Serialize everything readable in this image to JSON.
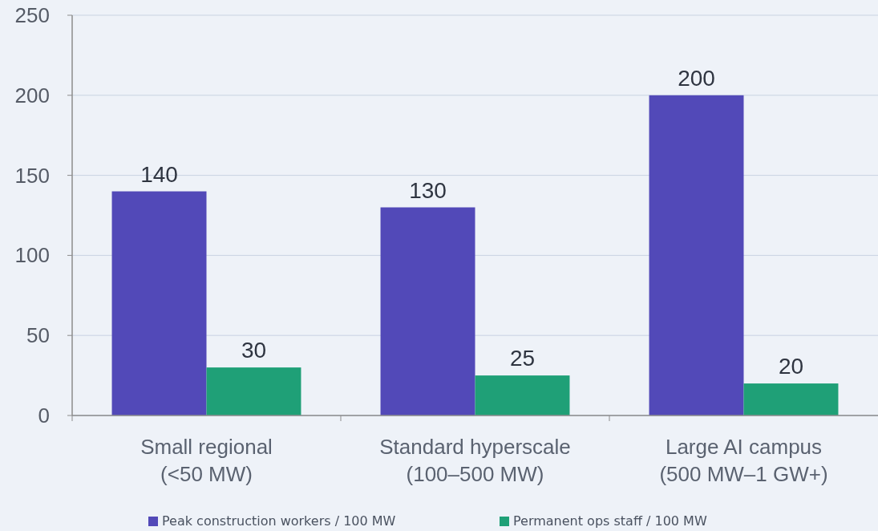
{
  "chart_data": {
    "type": "bar",
    "categories": [
      "Small regional\n(<50 MW)",
      "Standard hyperscale\n(100–500 MW)",
      "Large AI campus\n(500 MW–1 GW+)"
    ],
    "series": [
      {
        "name": "Peak construction workers / 100 MW",
        "color": "#5249b8",
        "values": [
          140,
          130,
          200
        ]
      },
      {
        "name": "Permanent ops staff / 100 MW",
        "color": "#1fa077",
        "values": [
          30,
          25,
          20
        ]
      }
    ],
    "ylim": [
      0,
      250
    ],
    "yticks": [
      0,
      50,
      100,
      150,
      200,
      250
    ],
    "grid": "y",
    "legend": "bottom",
    "data_labels": true
  }
}
